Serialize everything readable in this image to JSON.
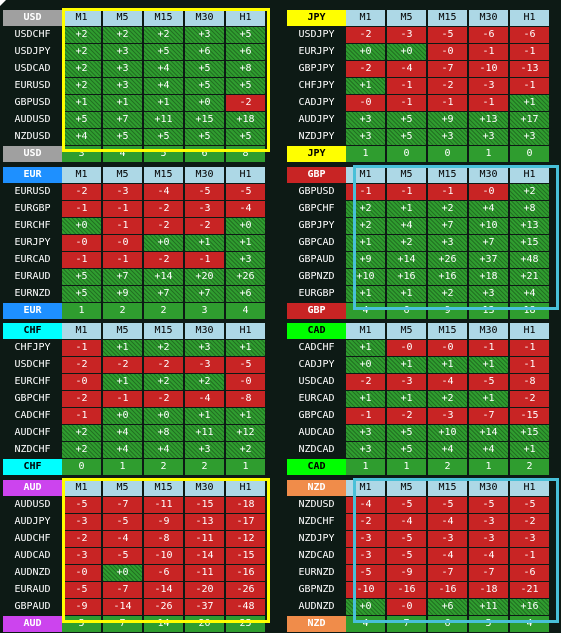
{
  "colors": {
    "positive": "#2f9d2f",
    "negative": "#c82424",
    "header_cell": "#add8e6",
    "highlight_yellow": "#ffff00",
    "highlight_cyan": "#48c0d8"
  },
  "timeframes": [
    "M1",
    "M5",
    "M15",
    "M30",
    "H1"
  ],
  "panels": [
    {
      "currency": "USD",
      "header_bg": "#a0a0a0",
      "label_light": false,
      "rows": [
        {
          "pair": "USDCHF",
          "values": [
            "+2",
            "+2",
            "+2",
            "+3",
            "+5"
          ]
        },
        {
          "pair": "USDJPY",
          "values": [
            "+2",
            "+3",
            "+5",
            "+6",
            "+6"
          ]
        },
        {
          "pair": "USDCAD",
          "values": [
            "+2",
            "+3",
            "+4",
            "+5",
            "+8"
          ]
        },
        {
          "pair": "EURUSD",
          "values": [
            "+2",
            "+3",
            "+4",
            "+5",
            "+5"
          ]
        },
        {
          "pair": "GBPUSD",
          "values": [
            "+1",
            "+1",
            "+1",
            "+0",
            "-2"
          ]
        },
        {
          "pair": "AUDUSD",
          "values": [
            "+5",
            "+7",
            "+11",
            "+15",
            "+18"
          ]
        },
        {
          "pair": "NZDUSD",
          "values": [
            "+4",
            "+5",
            "+5",
            "+5",
            "+5"
          ]
        }
      ],
      "footer": [
        "3",
        "4",
        "5",
        "6",
        "8"
      ]
    },
    {
      "currency": "JPY",
      "header_bg": "#ffff00",
      "label_light": true,
      "rows": [
        {
          "pair": "USDJPY",
          "values": [
            "-2",
            "-3",
            "-5",
            "-6",
            "-6"
          ]
        },
        {
          "pair": "EURJPY",
          "values": [
            "+0",
            "+0",
            "-0",
            "-1",
            "-1"
          ]
        },
        {
          "pair": "GBPJPY",
          "values": [
            "-2",
            "-4",
            "-7",
            "-10",
            "-13"
          ]
        },
        {
          "pair": "CHFJPY",
          "values": [
            "+1",
            "-1",
            "-2",
            "-3",
            "-1"
          ]
        },
        {
          "pair": "CADJPY",
          "values": [
            "-0",
            "-1",
            "-1",
            "-1",
            "+1"
          ]
        },
        {
          "pair": "AUDJPY",
          "values": [
            "+3",
            "+5",
            "+9",
            "+13",
            "+17"
          ]
        },
        {
          "pair": "NZDJPY",
          "values": [
            "+3",
            "+5",
            "+3",
            "+3",
            "+3"
          ]
        }
      ],
      "footer": [
        "1",
        "0",
        "0",
        "1",
        "0"
      ]
    },
    {
      "currency": "EUR",
      "header_bg": "#1e90ff",
      "label_light": false,
      "rows": [
        {
          "pair": "EURUSD",
          "values": [
            "-2",
            "-3",
            "-4",
            "-5",
            "-5"
          ]
        },
        {
          "pair": "EURGBP",
          "values": [
            "-1",
            "-1",
            "-2",
            "-3",
            "-4"
          ]
        },
        {
          "pair": "EURCHF",
          "values": [
            "+0",
            "-1",
            "-2",
            "-2",
            "+0"
          ]
        },
        {
          "pair": "EURJPY",
          "values": [
            "-0",
            "-0",
            "+0",
            "+1",
            "+1"
          ]
        },
        {
          "pair": "EURCAD",
          "values": [
            "-1",
            "-1",
            "-2",
            "-1",
            "+3"
          ]
        },
        {
          "pair": "EURAUD",
          "values": [
            "+5",
            "+7",
            "+14",
            "+20",
            "+26"
          ]
        },
        {
          "pair": "EURNZD",
          "values": [
            "+5",
            "+9",
            "+7",
            "+7",
            "+6"
          ]
        }
      ],
      "footer": [
        "1",
        "2",
        "2",
        "3",
        "4"
      ]
    },
    {
      "currency": "GBP",
      "header_bg": "#c82424",
      "label_light": false,
      "rows": [
        {
          "pair": "GBPUSD",
          "values": [
            "-1",
            "-1",
            "-1",
            "-0",
            "+2"
          ]
        },
        {
          "pair": "GBPCHF",
          "values": [
            "+2",
            "+1",
            "+2",
            "+4",
            "+8"
          ]
        },
        {
          "pair": "GBPJPY",
          "values": [
            "+2",
            "+4",
            "+7",
            "+10",
            "+13"
          ]
        },
        {
          "pair": "GBPCAD",
          "values": [
            "+1",
            "+2",
            "+3",
            "+7",
            "+15"
          ]
        },
        {
          "pair": "GBPAUD",
          "values": [
            "+9",
            "+14",
            "+26",
            "+37",
            "+48"
          ]
        },
        {
          "pair": "GBPNZD",
          "values": [
            "+10",
            "+16",
            "+16",
            "+18",
            "+21"
          ]
        },
        {
          "pair": "EURGBP",
          "values": [
            "+1",
            "+1",
            "+2",
            "+3",
            "+4"
          ]
        }
      ],
      "footer": [
        "4",
        "6",
        "9",
        "13",
        "18"
      ]
    },
    {
      "currency": "CHF",
      "header_bg": "#00ffff",
      "label_light": true,
      "rows": [
        {
          "pair": "CHFJPY",
          "values": [
            "-1",
            "+1",
            "+2",
            "+3",
            "+1"
          ]
        },
        {
          "pair": "USDCHF",
          "values": [
            "-2",
            "-2",
            "-2",
            "-3",
            "-5"
          ]
        },
        {
          "pair": "EURCHF",
          "values": [
            "-0",
            "+1",
            "+2",
            "+2",
            "-0"
          ]
        },
        {
          "pair": "GBPCHF",
          "values": [
            "-2",
            "-1",
            "-2",
            "-4",
            "-8"
          ]
        },
        {
          "pair": "CADCHF",
          "values": [
            "-1",
            "+0",
            "+0",
            "+1",
            "+1"
          ]
        },
        {
          "pair": "AUDCHF",
          "values": [
            "+2",
            "+4",
            "+8",
            "+11",
            "+12"
          ]
        },
        {
          "pair": "NZDCHF",
          "values": [
            "+2",
            "+4",
            "+4",
            "+3",
            "+2"
          ]
        }
      ],
      "footer": [
        "0",
        "1",
        "2",
        "2",
        "1"
      ]
    },
    {
      "currency": "CAD",
      "header_bg": "#00ff00",
      "label_light": true,
      "rows": [
        {
          "pair": "CADCHF",
          "values": [
            "+1",
            "-0",
            "-0",
            "-1",
            "-1"
          ]
        },
        {
          "pair": "CADJPY",
          "values": [
            "+0",
            "+1",
            "+1",
            "+1",
            "-1"
          ]
        },
        {
          "pair": "USDCAD",
          "values": [
            "-2",
            "-3",
            "-4",
            "-5",
            "-8"
          ]
        },
        {
          "pair": "EURCAD",
          "values": [
            "+1",
            "+1",
            "+2",
            "+1",
            "-2"
          ]
        },
        {
          "pair": "GBPCAD",
          "values": [
            "-1",
            "-2",
            "-3",
            "-7",
            "-15"
          ]
        },
        {
          "pair": "AUDCAD",
          "values": [
            "+3",
            "+5",
            "+10",
            "+14",
            "+15"
          ]
        },
        {
          "pair": "NZDCAD",
          "values": [
            "+3",
            "+5",
            "+4",
            "+4",
            "+1"
          ]
        }
      ],
      "footer": [
        "1",
        "1",
        "2",
        "1",
        "2"
      ]
    },
    {
      "currency": "AUD",
      "header_bg": "#cc44ee",
      "label_light": false,
      "rows": [
        {
          "pair": "AUDUSD",
          "values": [
            "-5",
            "-7",
            "-11",
            "-15",
            "-18"
          ]
        },
        {
          "pair": "AUDJPY",
          "values": [
            "-3",
            "-5",
            "-9",
            "-13",
            "-17"
          ]
        },
        {
          "pair": "AUDCHF",
          "values": [
            "-2",
            "-4",
            "-8",
            "-11",
            "-12"
          ]
        },
        {
          "pair": "AUDCAD",
          "values": [
            "-3",
            "-5",
            "-10",
            "-14",
            "-15"
          ]
        },
        {
          "pair": "AUDNZD",
          "values": [
            "-0",
            "+0",
            "-6",
            "-11",
            "-16"
          ]
        },
        {
          "pair": "EURAUD",
          "values": [
            "-5",
            "-7",
            "-14",
            "-20",
            "-26"
          ]
        },
        {
          "pair": "GBPAUD",
          "values": [
            "-9",
            "-14",
            "-26",
            "-37",
            "-48"
          ]
        }
      ],
      "footer": [
        "5",
        "7",
        "14",
        "20",
        "25"
      ]
    },
    {
      "currency": "NZD",
      "header_bg": "#f08c4a",
      "label_light": false,
      "rows": [
        {
          "pair": "NZDUSD",
          "values": [
            "-4",
            "-5",
            "-5",
            "-5",
            "-5"
          ]
        },
        {
          "pair": "NZDCHF",
          "values": [
            "-2",
            "-4",
            "-4",
            "-3",
            "-2"
          ]
        },
        {
          "pair": "NZDJPY",
          "values": [
            "-3",
            "-5",
            "-3",
            "-3",
            "-3"
          ]
        },
        {
          "pair": "NZDCAD",
          "values": [
            "-3",
            "-5",
            "-4",
            "-4",
            "-1"
          ]
        },
        {
          "pair": "EURNZD",
          "values": [
            "-5",
            "-9",
            "-7",
            "-7",
            "-6"
          ]
        },
        {
          "pair": "GBPNZD",
          "values": [
            "-10",
            "-16",
            "-16",
            "-18",
            "-21"
          ]
        },
        {
          "pair": "AUDNZD",
          "values": [
            "+0",
            "-0",
            "+6",
            "+11",
            "+16"
          ]
        }
      ],
      "footer": [
        "4",
        "7",
        "6",
        "5",
        "4"
      ]
    }
  ]
}
